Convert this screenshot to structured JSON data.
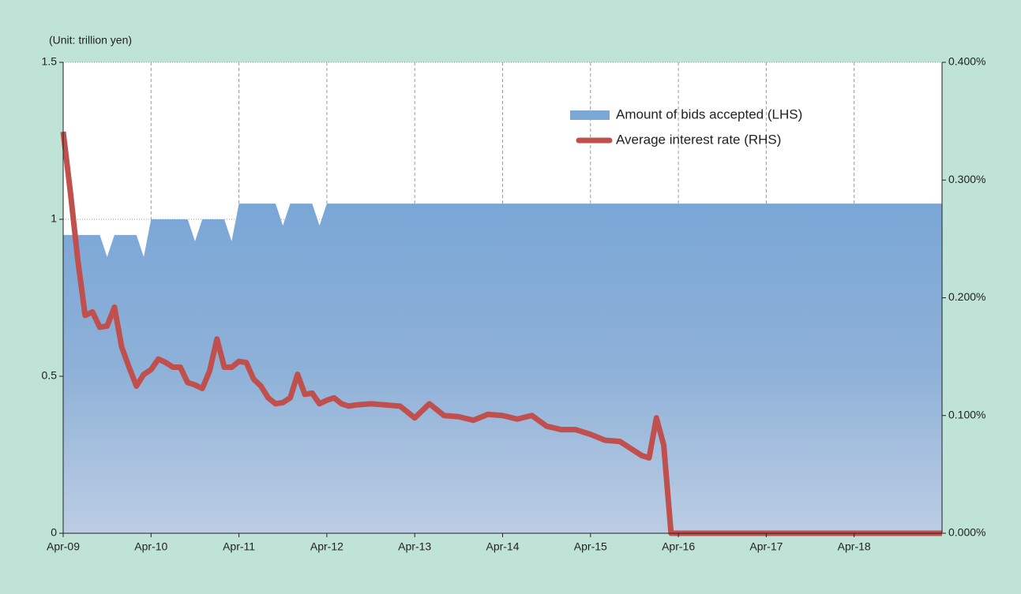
{
  "chart_data": {
    "type": "area-line",
    "annotation": "(Unit: trillion yen)",
    "xlim": [
      "2009-04",
      "2019-04"
    ],
    "xticks": [
      {
        "value": "2009-04",
        "label": "Apr-09"
      },
      {
        "value": "2010-04",
        "label": "Apr-10"
      },
      {
        "value": "2011-04",
        "label": "Apr-11"
      },
      {
        "value": "2012-04",
        "label": "Apr-12"
      },
      {
        "value": "2013-04",
        "label": "Apr-13"
      },
      {
        "value": "2014-04",
        "label": "Apr-14"
      },
      {
        "value": "2015-04",
        "label": "Apr-15"
      },
      {
        "value": "2016-04",
        "label": "Apr-16"
      },
      {
        "value": "2017-04",
        "label": "Apr-17"
      },
      {
        "value": "2018-04",
        "label": "Apr-18"
      }
    ],
    "ylim": [
      0,
      1.5
    ],
    "yticks": [
      0,
      0.5,
      1,
      1.5
    ],
    "y2lim": [
      0,
      0.4
    ],
    "y2ticks": [
      {
        "value": 0,
        "label": "0.000%"
      },
      {
        "value": 0.1,
        "label": "0.100%"
      },
      {
        "value": 0.2,
        "label": "0.200%"
      },
      {
        "value": 0.3,
        "label": "0.300%"
      },
      {
        "value": 0.4,
        "label": "0.400%"
      }
    ],
    "grid": true,
    "series": [
      {
        "name": "Amount of bids accepted (LHS)",
        "kind": "area",
        "color": "#7ba7d5",
        "x": [
          "2009-04",
          "2009-09",
          "2009-10",
          "2009-11",
          "2010-02",
          "2010-03",
          "2010-04",
          "2010-09",
          "2010-10",
          "2010-11",
          "2011-02",
          "2011-03",
          "2011-04",
          "2011-09",
          "2011-10",
          "2011-11",
          "2012-02",
          "2012-03",
          "2012-04",
          "2019-04"
        ],
        "values": [
          0.95,
          0.95,
          0.88,
          0.95,
          0.95,
          0.88,
          1.0,
          1.0,
          0.93,
          1.0,
          1.0,
          0.93,
          1.05,
          1.05,
          0.98,
          1.05,
          1.05,
          0.98,
          1.05,
          1.05
        ]
      },
      {
        "name": "Average interest rate (RHS)",
        "kind": "line",
        "axis": "y2",
        "color": "#bf504d",
        "x": [
          "2009-04",
          "2009-05",
          "2009-06",
          "2009-07",
          "2009-08",
          "2009-09",
          "2009-10",
          "2009-11",
          "2009-12",
          "2010-01",
          "2010-02",
          "2010-03",
          "2010-04",
          "2010-05",
          "2010-06",
          "2010-07",
          "2010-08",
          "2010-09",
          "2010-10",
          "2010-11",
          "2010-12",
          "2011-01",
          "2011-02",
          "2011-03",
          "2011-04",
          "2011-05",
          "2011-06",
          "2011-07",
          "2011-08",
          "2011-09",
          "2011-10",
          "2011-11",
          "2011-12",
          "2012-01",
          "2012-02",
          "2012-03",
          "2012-04",
          "2012-05",
          "2012-06",
          "2012-07",
          "2012-08",
          "2012-10",
          "2012-12",
          "2013-02",
          "2013-04",
          "2013-06",
          "2013-08",
          "2013-10",
          "2013-12",
          "2014-02",
          "2014-04",
          "2014-06",
          "2014-08",
          "2014-10",
          "2014-12",
          "2015-02",
          "2015-04",
          "2015-06",
          "2015-08",
          "2015-10",
          "2015-11",
          "2015-12",
          "2016-01",
          "2016-02",
          "2016-03",
          "2019-04"
        ],
        "values": [
          0.341,
          0.289,
          0.232,
          0.185,
          0.188,
          0.175,
          0.176,
          0.192,
          0.158,
          0.141,
          0.125,
          0.135,
          0.139,
          0.148,
          0.145,
          0.141,
          0.141,
          0.128,
          0.126,
          0.123,
          0.138,
          0.165,
          0.141,
          0.141,
          0.146,
          0.145,
          0.131,
          0.125,
          0.115,
          0.11,
          0.111,
          0.115,
          0.135,
          0.118,
          0.119,
          0.11,
          0.113,
          0.115,
          0.11,
          0.108,
          0.109,
          0.11,
          0.109,
          0.108,
          0.098,
          0.11,
          0.1,
          0.099,
          0.096,
          0.101,
          0.1,
          0.097,
          0.1,
          0.091,
          0.088,
          0.088,
          0.084,
          0.079,
          0.078,
          0.07,
          0.066,
          0.064,
          0.098,
          0.075,
          0,
          0
        ]
      }
    ]
  }
}
